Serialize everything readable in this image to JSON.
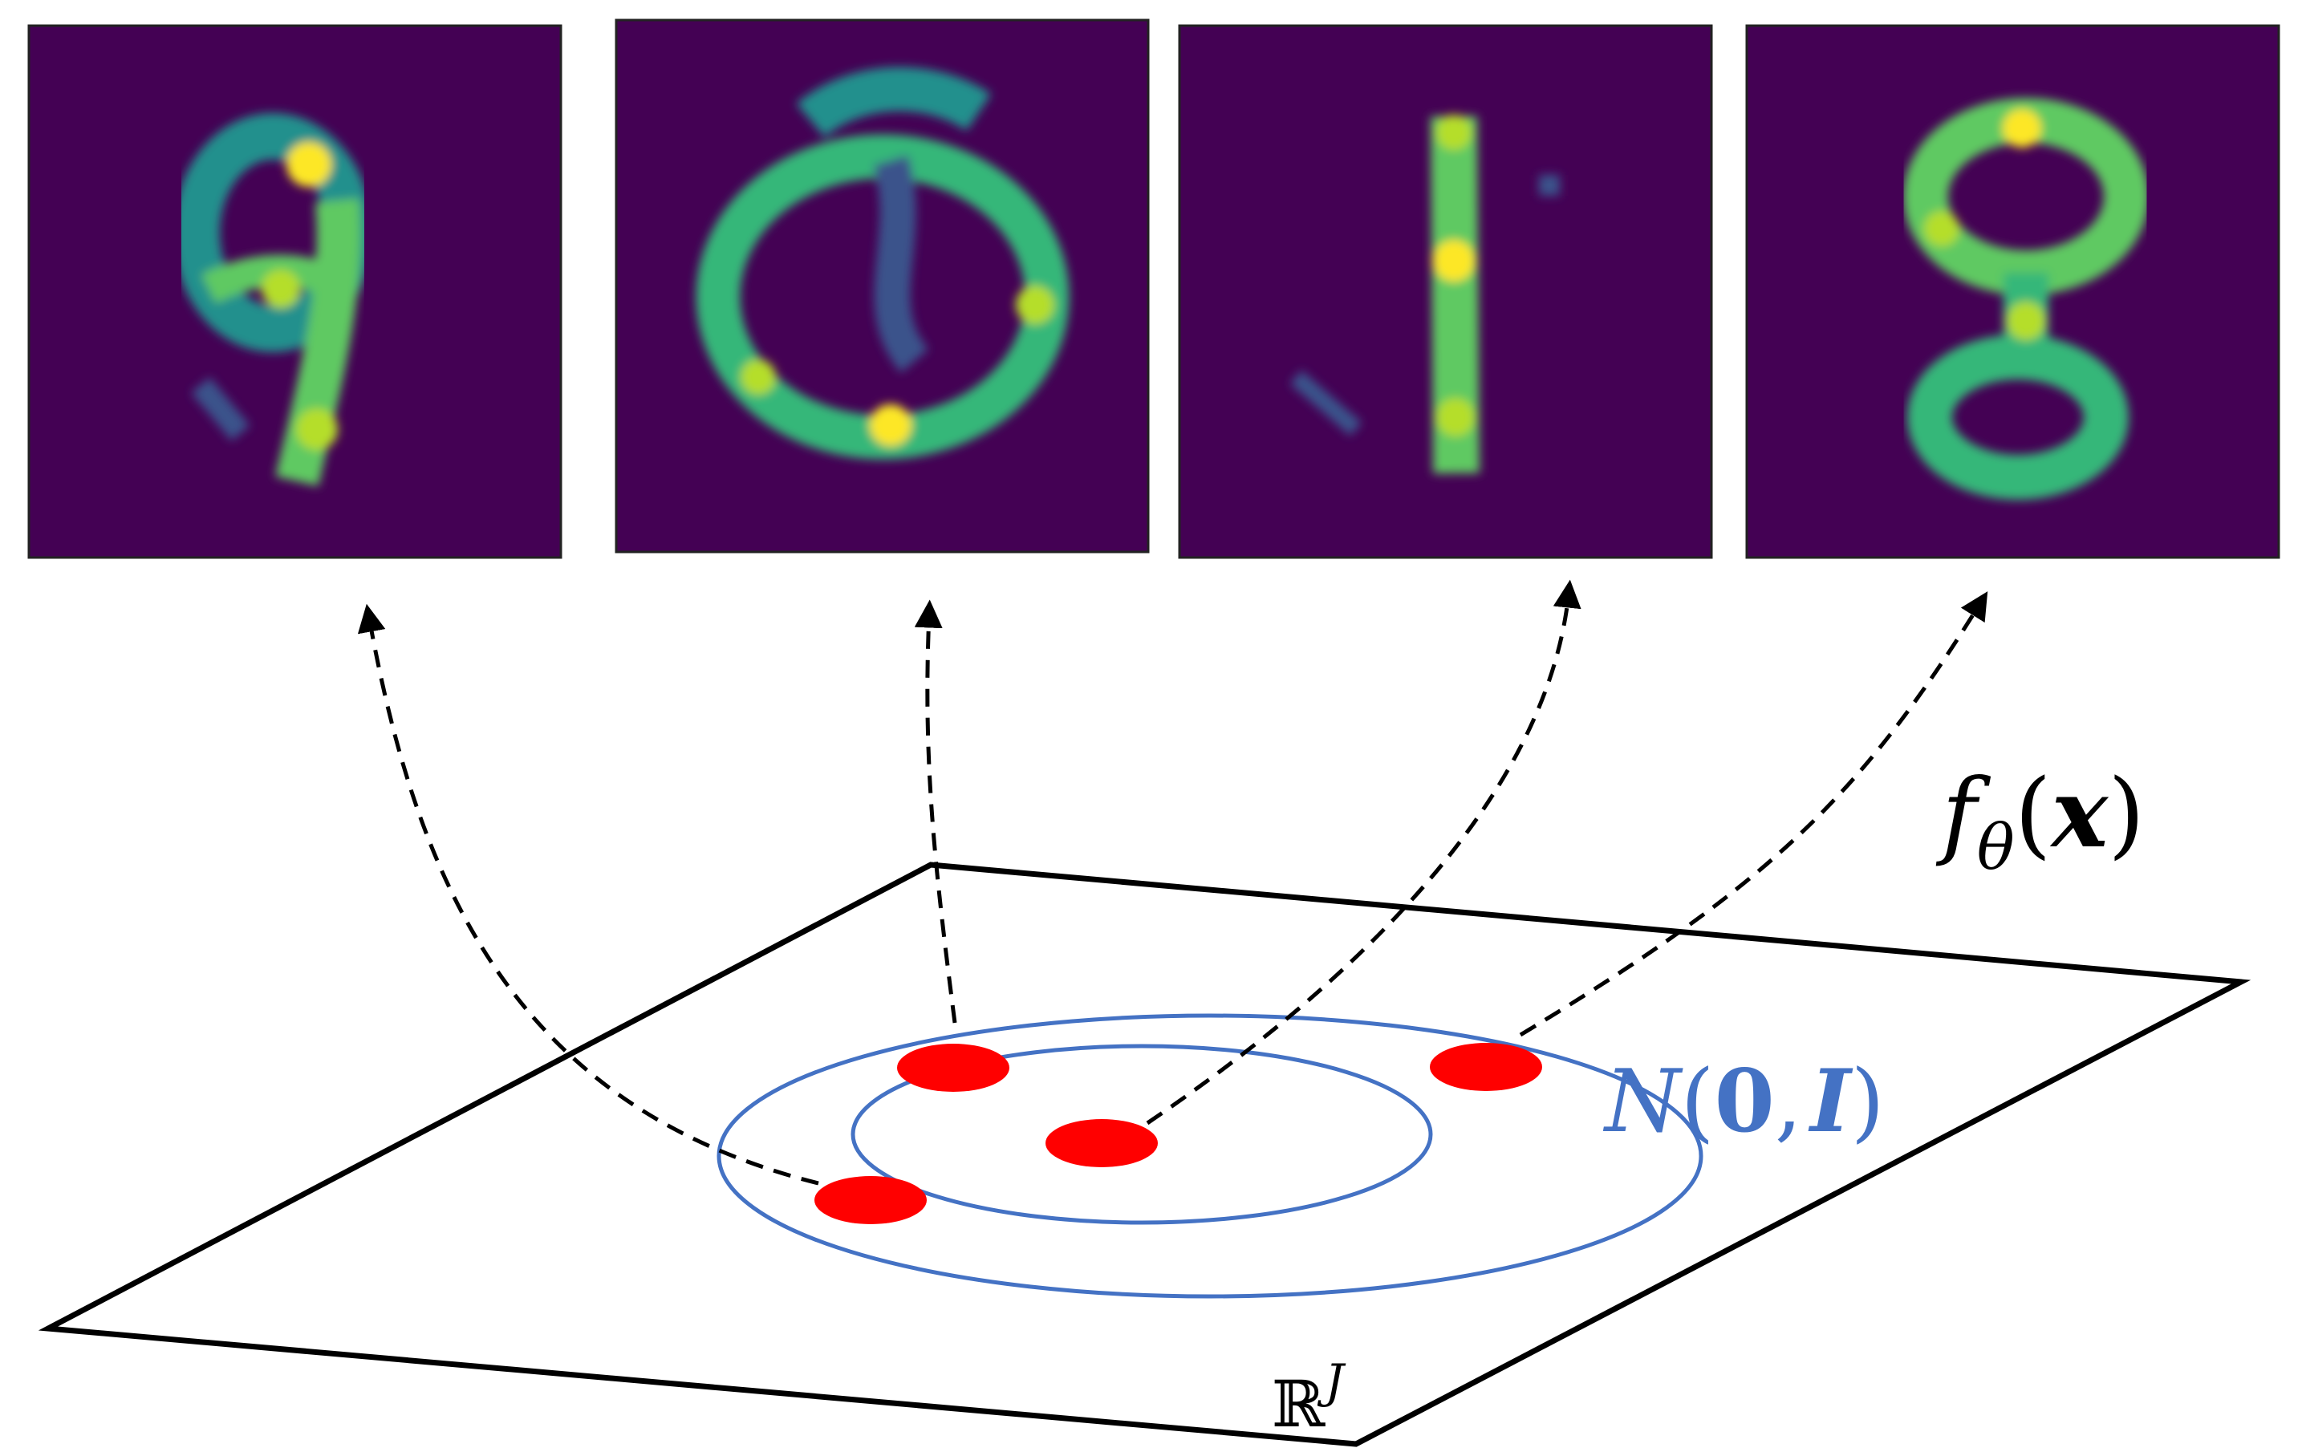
{
  "labels": {
    "mapping_fn": {
      "f": "f",
      "sub": "θ",
      "open": "(",
      "arg": "x",
      "close": ")"
    },
    "distribution": {
      "N": "N",
      "open": "(",
      "zero": "0",
      "comma": ",",
      "I": "I",
      "close": ")"
    },
    "space": {
      "R": "ℝ",
      "sup": "J"
    }
  },
  "samples": [
    {
      "digit": "9"
    },
    {
      "digit": "0"
    },
    {
      "digit": "1"
    },
    {
      "digit": "8"
    }
  ],
  "colors": {
    "image_bg": "#440154",
    "stroke_low": "#3b528b",
    "stroke_mid": "#21908d",
    "stroke_high": "#5ec962",
    "stroke_peak": "#fde725",
    "contour": "#4472c4",
    "sample_point": "#ff0000",
    "plane_edge": "#000000"
  }
}
